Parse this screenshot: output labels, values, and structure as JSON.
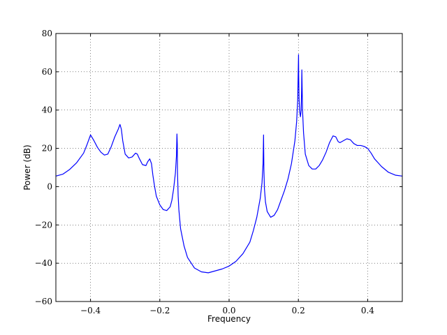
{
  "chart_data": {
    "type": "line",
    "title": "",
    "xlabel": "Frequency",
    "ylabel": "Power (dB)",
    "xlim": [
      -0.5,
      0.5
    ],
    "ylim": [
      -60,
      80
    ],
    "grid": true,
    "x_ticks": [
      -0.4,
      -0.2,
      0.0,
      0.2,
      0.4
    ],
    "x_tick_labels": [
      "−0.4",
      "−0.2",
      "0.0",
      "0.2",
      "0.4"
    ],
    "y_ticks": [
      -60,
      -40,
      -20,
      0,
      20,
      40,
      60,
      80
    ],
    "y_tick_labels": [
      "−60",
      "−40",
      "−20",
      "0",
      "20",
      "40",
      "60",
      "80"
    ],
    "series": [
      {
        "color": "#0000ff",
        "x": [
          -0.5,
          -0.48,
          -0.46,
          -0.44,
          -0.42,
          -0.41,
          -0.4,
          -0.39,
          -0.38,
          -0.37,
          -0.36,
          -0.35,
          -0.34,
          -0.33,
          -0.32,
          -0.315,
          -0.311,
          -0.307,
          -0.3,
          -0.29,
          -0.28,
          -0.27,
          -0.265,
          -0.26,
          -0.25,
          -0.24,
          -0.235,
          -0.229,
          -0.224,
          -0.22,
          -0.215,
          -0.21,
          -0.2,
          -0.19,
          -0.18,
          -0.17,
          -0.165,
          -0.16,
          -0.155,
          -0.152,
          -0.151,
          -0.1505,
          -0.1495,
          -0.149,
          -0.147,
          -0.145,
          -0.14,
          -0.13,
          -0.12,
          -0.1,
          -0.08,
          -0.06,
          -0.04,
          -0.02,
          0.0,
          0.02,
          0.04,
          0.06,
          0.07,
          0.08,
          0.09,
          0.095,
          0.098,
          0.0995,
          0.1005,
          0.102,
          0.105,
          0.11,
          0.12,
          0.13,
          0.14,
          0.15,
          0.16,
          0.17,
          0.18,
          0.19,
          0.195,
          0.198,
          0.2005,
          0.201,
          0.202,
          0.204,
          0.206,
          0.208,
          0.2095,
          0.21,
          0.212,
          0.215,
          0.22,
          0.23,
          0.24,
          0.25,
          0.26,
          0.27,
          0.28,
          0.29,
          0.3,
          0.308,
          0.315,
          0.32,
          0.33,
          0.34,
          0.35,
          0.36,
          0.37,
          0.38,
          0.39,
          0.4,
          0.41,
          0.42,
          0.43,
          0.44,
          0.46,
          0.48,
          0.5
        ],
        "y": [
          5.5,
          6.5,
          9.0,
          12.5,
          17.5,
          22.0,
          27.0,
          24.0,
          20.5,
          18.0,
          16.5,
          17.0,
          21.0,
          26.0,
          30.0,
          32.5,
          30.0,
          24.0,
          17.0,
          15.0,
          15.5,
          17.5,
          17.0,
          15.0,
          11.5,
          11.0,
          13.0,
          14.5,
          12.0,
          6.0,
          0.0,
          -5.0,
          -9.5,
          -12.0,
          -12.5,
          -10.5,
          -7.0,
          -1.0,
          7.0,
          16.0,
          24.0,
          27.5,
          22.0,
          8.0,
          -5.0,
          -12.0,
          -22.0,
          -31.0,
          -37.0,
          -42.5,
          -44.5,
          -45.0,
          -44.0,
          -43.0,
          -41.5,
          -39.0,
          -35.0,
          -29.0,
          -23.0,
          -16.0,
          -6.0,
          2.0,
          12.0,
          27.0,
          9.0,
          -1.0,
          -8.0,
          -13.0,
          -16.0,
          -15.0,
          -12.0,
          -7.0,
          -2.0,
          4.0,
          12.0,
          24.0,
          34.0,
          45.0,
          69.0,
          58.0,
          46.0,
          39.0,
          36.5,
          40.0,
          52.0,
          61.0,
          40.0,
          28.0,
          17.0,
          11.0,
          9.2,
          9.2,
          11.0,
          14.0,
          18.0,
          23.0,
          26.5,
          26.0,
          23.5,
          23.0,
          24.0,
          25.0,
          24.5,
          22.5,
          21.5,
          21.5,
          21.0,
          20.0,
          17.5,
          14.5,
          12.5,
          10.5,
          7.5,
          6.0,
          5.5
        ]
      }
    ]
  }
}
